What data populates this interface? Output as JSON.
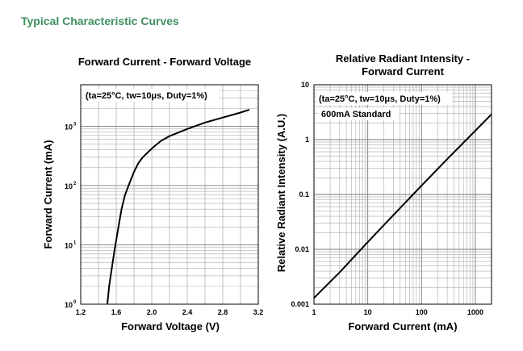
{
  "page": {
    "heading": "Typical Characteristic Curves"
  },
  "chart_data": [
    {
      "type": "line",
      "title": "Forward Current - Forward Voltage",
      "xlabel": "Forward Voltage (V)",
      "ylabel": "Forward Current (mA)",
      "xlim": [
        1.2,
        3.2
      ],
      "ylim": [
        1,
        5000
      ],
      "yscale": "log",
      "grid": true,
      "annotation": "(ta=25°C, tw=10μs, Duty=1%)",
      "x_ticks": [
        "1.2",
        "1.6",
        "2.0",
        "2.4",
        "2.8",
        "3.2"
      ],
      "y_ticks": [
        {
          "base": "10",
          "exp": "0"
        },
        {
          "base": "10",
          "exp": "1"
        },
        {
          "base": "10",
          "exp": "2"
        },
        {
          "base": "10",
          "exp": "3"
        }
      ],
      "series": [
        {
          "x": [
            1.5,
            1.52,
            1.55,
            1.58,
            1.6,
            1.63,
            1.66,
            1.7,
            1.75,
            1.8,
            1.85,
            1.9,
            2.0,
            2.1,
            2.2,
            2.4,
            2.6,
            2.8,
            3.0,
            3.1
          ],
          "y": [
            1,
            2,
            4,
            8,
            12,
            22,
            40,
            70,
            110,
            170,
            240,
            300,
            420,
            560,
            680,
            900,
            1150,
            1400,
            1700,
            1900
          ]
        }
      ]
    },
    {
      "type": "line",
      "title": "Relative Radiant Intensity - Forward Current",
      "xlabel": "Forward Current (mA)",
      "ylabel": "Relative Radiant Intensity (A.U.)",
      "xlim": [
        1,
        2000
      ],
      "ylim": [
        0.001,
        10
      ],
      "xscale": "log",
      "yscale": "log",
      "grid": true,
      "annotation": "(ta=25°C, tw=10μs, Duty=1%)",
      "annotation2": "600mA Standard",
      "x_ticks": [
        "1",
        "10",
        "100",
        "1000"
      ],
      "y_ticks": [
        "0.001",
        "0.01",
        "0.1",
        "1",
        "10"
      ],
      "series": [
        {
          "x": [
            1,
            3,
            10,
            30,
            100,
            300,
            1000,
            2000
          ],
          "y": [
            0.0013,
            0.0038,
            0.0135,
            0.042,
            0.145,
            0.44,
            1.45,
            2.9
          ]
        }
      ]
    }
  ]
}
